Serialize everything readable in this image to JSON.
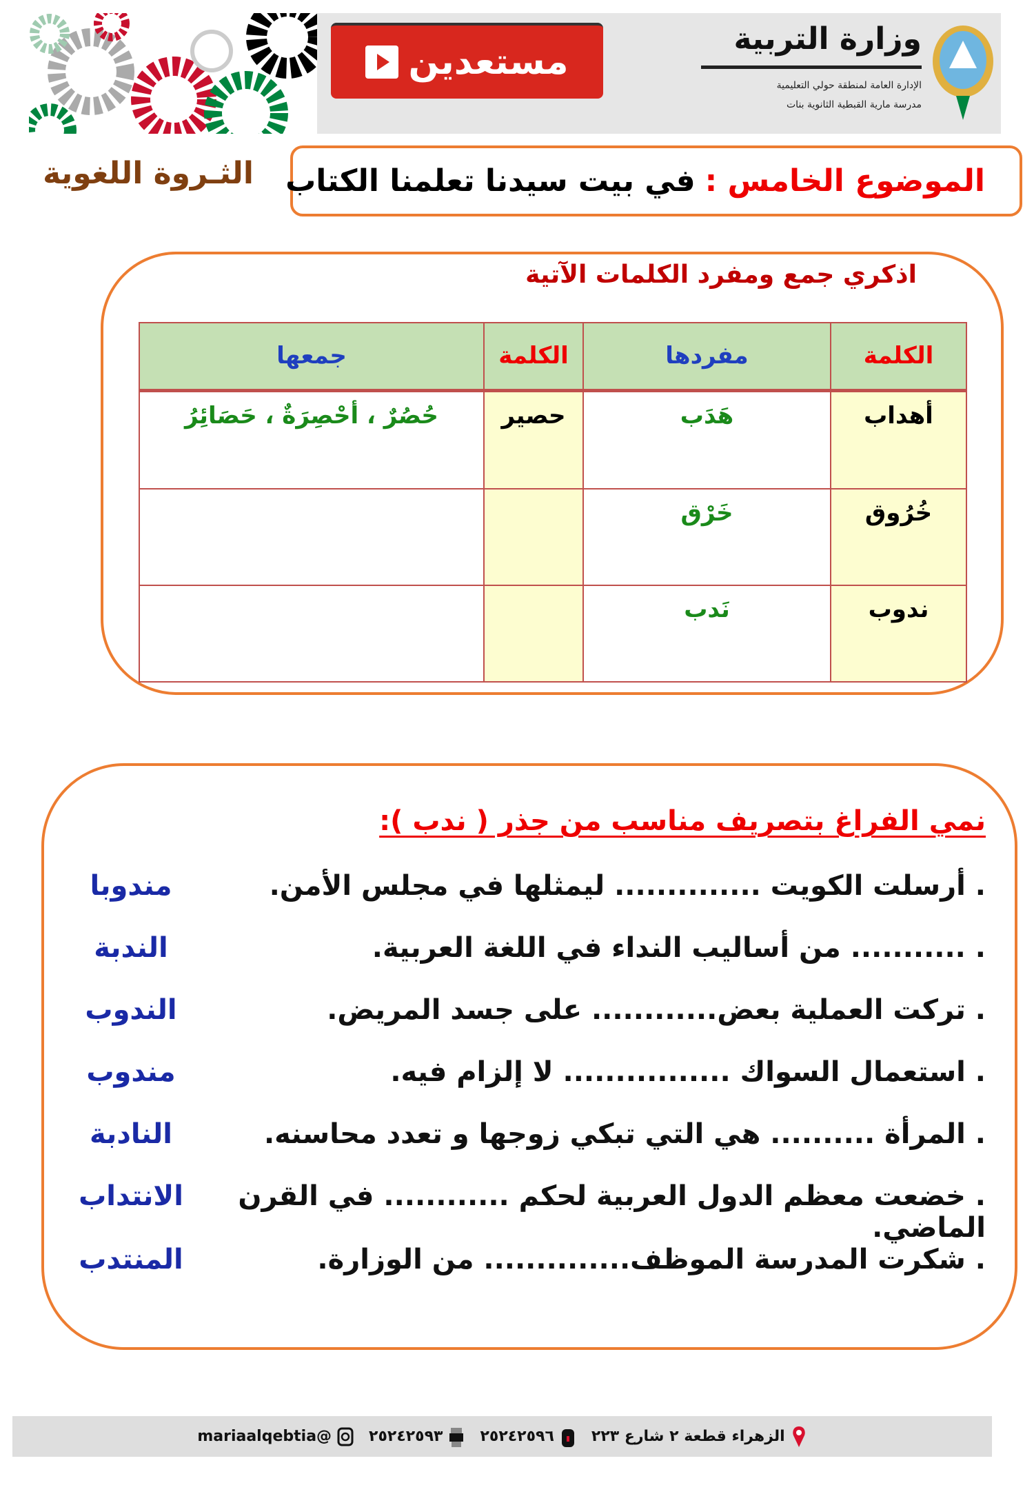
{
  "banner": {
    "button_label": "مستعدين",
    "ministry_name": "وزارة التربية",
    "directorate": "الإدارة العامة لمنطقة حولي التعليمية",
    "school": "مدرسة مارية القبطية الثانوية بنات"
  },
  "title": {
    "label": "الموضوع الخامس :",
    "text": "في بيت سيدنا تعلمنا الكتاب"
  },
  "section_title": "الثـروة اللغوية",
  "exercise1": {
    "instruction": "اذكري جمع ومفرد الكلمات الآتية",
    "headers": [
      "الكلمة",
      "مفردها",
      "الكلمة",
      "جمعها"
    ],
    "rows": [
      {
        "word1": "أهداب",
        "singular": "هَدَب",
        "word2": "حصير",
        "plural": "حُصُرٌ ، أحْصِرَةٌ ، حَصَائِرُ"
      },
      {
        "word1": "خُرُوق",
        "singular": "خَرْق",
        "word2": "",
        "plural": ""
      },
      {
        "word1": "ندوب",
        "singular": "نَدب",
        "word2": "",
        "plural": ""
      }
    ]
  },
  "exercise2": {
    "instruction": "نمي الفراغ بتصريف مناسب من جذر ( ندب ):",
    "items": [
      {
        "sentence": ". أرسلت الكويت .............. ليمثلها في مجلس الأمن.",
        "answer": "مندوبا"
      },
      {
        "sentence": ". ........... من أساليب النداء في اللغة العربية.",
        "answer": "الندبة"
      },
      {
        "sentence": ". تركت العملية بعض............ على جسد المريض.",
        "answer": "الندوب"
      },
      {
        "sentence": ". استعمال السواك ................ لا إلزام فيه.",
        "answer": "مندوب"
      },
      {
        "sentence": ". المرأة .......... هي التي تبكي زوجها و تعدد محاسنه.",
        "answer": "النادبة"
      },
      {
        "sentence": ". خضعت معظم الدول العربية لحكم ............ في القرن الماضي.",
        "answer": "الانتداب"
      },
      {
        "sentence": ". شكرت المدرسة الموظف.............. من الوزارة.",
        "answer": "المنتدب"
      }
    ]
  },
  "footer": {
    "address": "الزهراء قطعة ٢ شارع ٢٢٣",
    "phone": "٢٥٢٤٢٥٩٦",
    "fax": "٢٥٢٤٢٥٩٣",
    "instagram": "@mariaalqebtia"
  },
  "colors": {
    "accent_border": "#ed7d31",
    "heading_red": "#e00000",
    "answer_blue": "#1a2aa6",
    "answer_green": "#1a8a1a",
    "table_header": "#c5e0b4",
    "word_column": "#fdfdd0"
  }
}
